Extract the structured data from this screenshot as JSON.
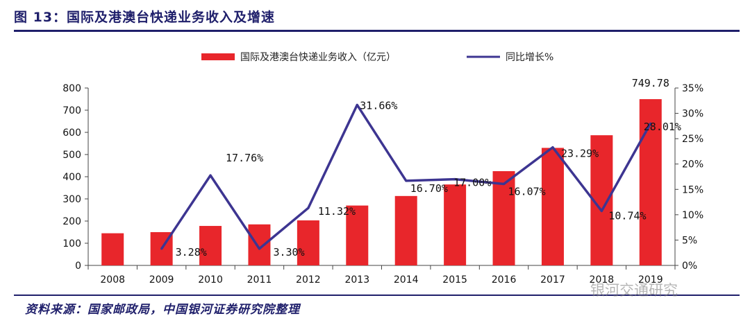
{
  "header": {
    "title": "图 13：国际及港澳台快递业务收入及增速"
  },
  "footer": {
    "source": "资料来源：国家邮政局，中国银河证券研究院整理",
    "watermark": "银河交通研究"
  },
  "colors": {
    "bar": "#e8262b",
    "line": "#3d3591",
    "rule": "#1f1f6b"
  },
  "chart_data": {
    "type": "bar",
    "categories": [
      "2008",
      "2009",
      "2010",
      "2011",
      "2012",
      "2013",
      "2014",
      "2015",
      "2016",
      "2017",
      "2018",
      "2019"
    ],
    "series": [
      {
        "name": "国际及港澳台快递业务收入（亿元）",
        "type": "bar",
        "axis": "left",
        "values": [
          145,
          150,
          178,
          185,
          203,
          270,
          313,
          365,
          425,
          530,
          587,
          749.78
        ]
      },
      {
        "name": "同比增长%",
        "type": "line",
        "axis": "right",
        "values": [
          null,
          3.28,
          17.76,
          3.3,
          11.32,
          31.66,
          16.7,
          17.0,
          16.07,
          23.29,
          10.74,
          28.01
        ]
      }
    ],
    "bar_data_labels": [
      "",
      "",
      "",
      "",
      "",
      "",
      "",
      "",
      "",
      "",
      "",
      "749.78"
    ],
    "line_data_labels": [
      "",
      "3.28%",
      "17.76%",
      "3.30%",
      "11.32%",
      "31.66%",
      "16.70%",
      "17.00%",
      "16.07%",
      "23.29%",
      "10.74%",
      "28.01%"
    ],
    "y_left": {
      "ylim": [
        0,
        800
      ],
      "ticks": [
        "0",
        "100",
        "200",
        "300",
        "400",
        "500",
        "600",
        "700",
        "800"
      ]
    },
    "y_right": {
      "ylim": [
        0,
        35
      ],
      "ticks": [
        "0%",
        "5%",
        "10%",
        "15%",
        "20%",
        "25%",
        "30%",
        "35%"
      ]
    },
    "legend_position": "top-center",
    "grid": false
  }
}
